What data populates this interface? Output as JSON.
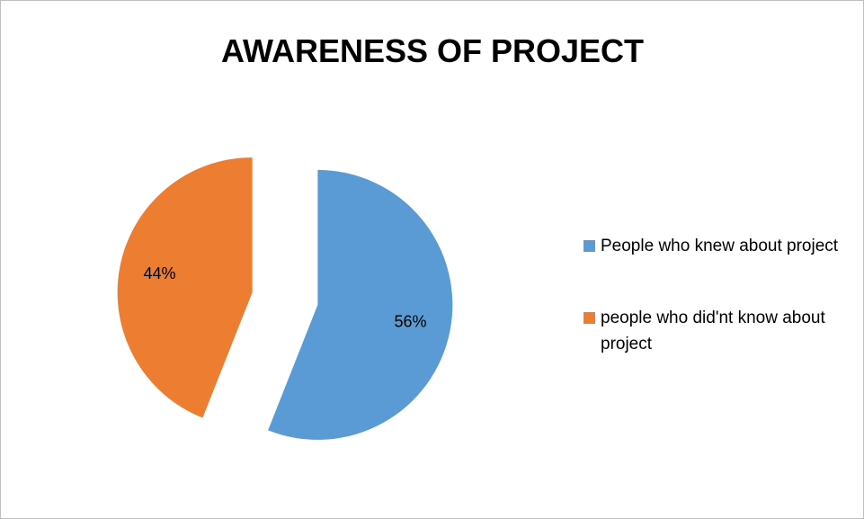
{
  "chart_data": {
    "type": "pie",
    "title": "AWARENESS OF PROJECT",
    "categories": [
      "People who knew about project",
      "people who did'nt know about project"
    ],
    "values": [
      56,
      44
    ],
    "value_labels": [
      "56%",
      "44%"
    ],
    "colors": [
      "#5b9bd5",
      "#ed7d31"
    ],
    "exploded": true,
    "legend": "right"
  }
}
